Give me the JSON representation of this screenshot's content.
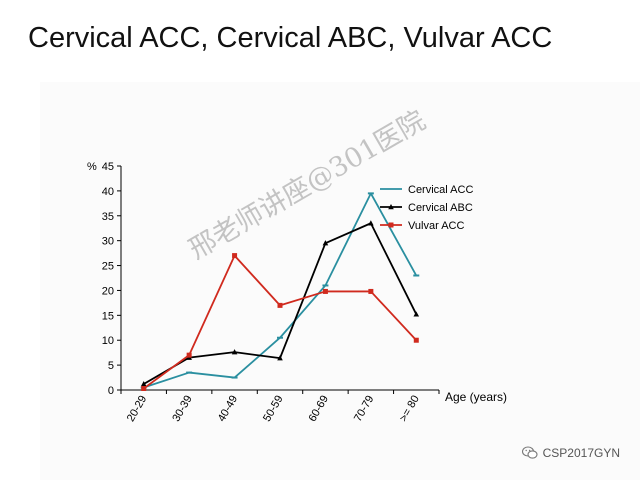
{
  "slide": {
    "title": "Cervical ACC, Cervical ABC, Vulvar ACC"
  },
  "watermark": "邢老师讲座@301医院",
  "credit": {
    "text": "CSP2017GYN",
    "icon": "wechat-icon"
  },
  "colors": {
    "cervical_acc": "#2a8fa0",
    "cervical_abc": "#000000",
    "vulvar_acc": "#d02a1e"
  },
  "chart_data": {
    "type": "line",
    "title": "",
    "xlabel": "Age (years)",
    "ylabel": "%",
    "categories": [
      "20-29",
      "30-39",
      "40-49",
      "50-59",
      "60-69",
      "70-79",
      ">= 80"
    ],
    "ylim": [
      0,
      45
    ],
    "yticks": [
      0,
      5,
      10,
      15,
      20,
      25,
      30,
      35,
      40,
      45
    ],
    "grid": false,
    "legend_position": "top-right",
    "series": [
      {
        "name": "Cervical ACC",
        "color": "#2a8fa0",
        "marker": "dash",
        "values": [
          0.5,
          3.5,
          2.5,
          10.5,
          21,
          39.5,
          23
        ]
      },
      {
        "name": "Cervical ABC",
        "color": "#000000",
        "marker": "triangle",
        "values": [
          1.2,
          6.5,
          7.6,
          6.4,
          29.5,
          33.5,
          15.2
        ]
      },
      {
        "name": "Vulvar ACC",
        "color": "#d02a1e",
        "marker": "square",
        "values": [
          0.3,
          7,
          27,
          17,
          19.8,
          19.8,
          10
        ]
      }
    ]
  }
}
